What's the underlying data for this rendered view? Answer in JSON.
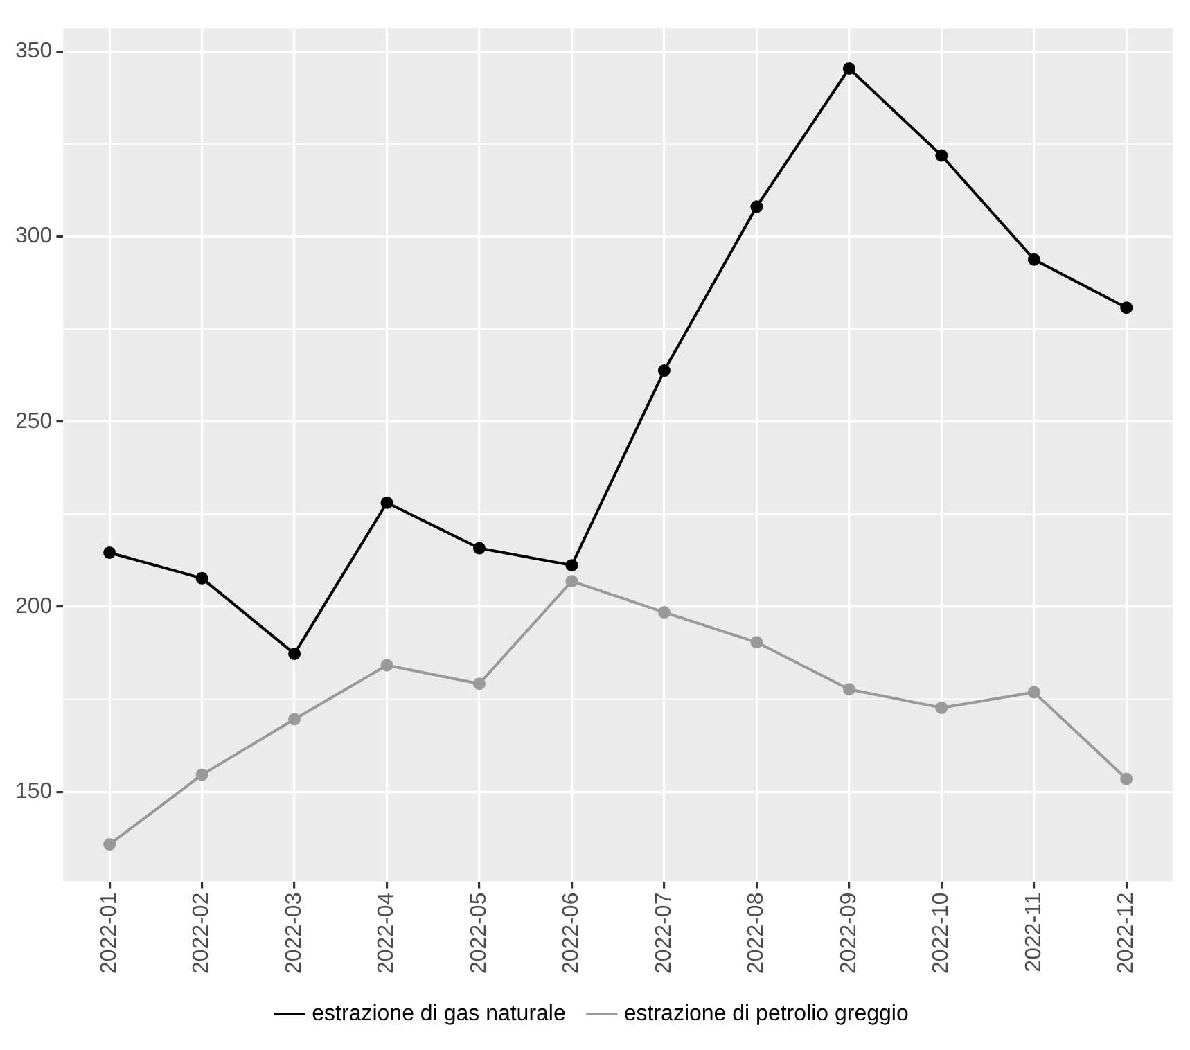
{
  "chart_data": {
    "type": "line",
    "categories": [
      "2022-01",
      "2022-02",
      "2022-03",
      "2022-04",
      "2022-05",
      "2022-06",
      "2022-07",
      "2022-08",
      "2022-09",
      "2022-10",
      "2022-11",
      "2022-12"
    ],
    "series": [
      {
        "name": "estrazione di gas naturale",
        "color": "#000000",
        "values": [
          214.6,
          207.7,
          187.3,
          228.1,
          215.8,
          211.2,
          263.8,
          308.1,
          345.4,
          321.9,
          293.8,
          280.8
        ]
      },
      {
        "name": "estrazione di petrolio greggio",
        "color": "#999999",
        "values": [
          135.8,
          154.6,
          169.6,
          184.2,
          179.2,
          206.9,
          198.5,
          190.4,
          177.7,
          172.7,
          176.9,
          153.5
        ]
      }
    ],
    "ylim": [
      125.8,
      356.2
    ],
    "yticks": [
      150,
      200,
      250,
      300,
      350
    ],
    "grid": true,
    "legend": "bottom",
    "marker": "circle",
    "line_style": "solid"
  }
}
